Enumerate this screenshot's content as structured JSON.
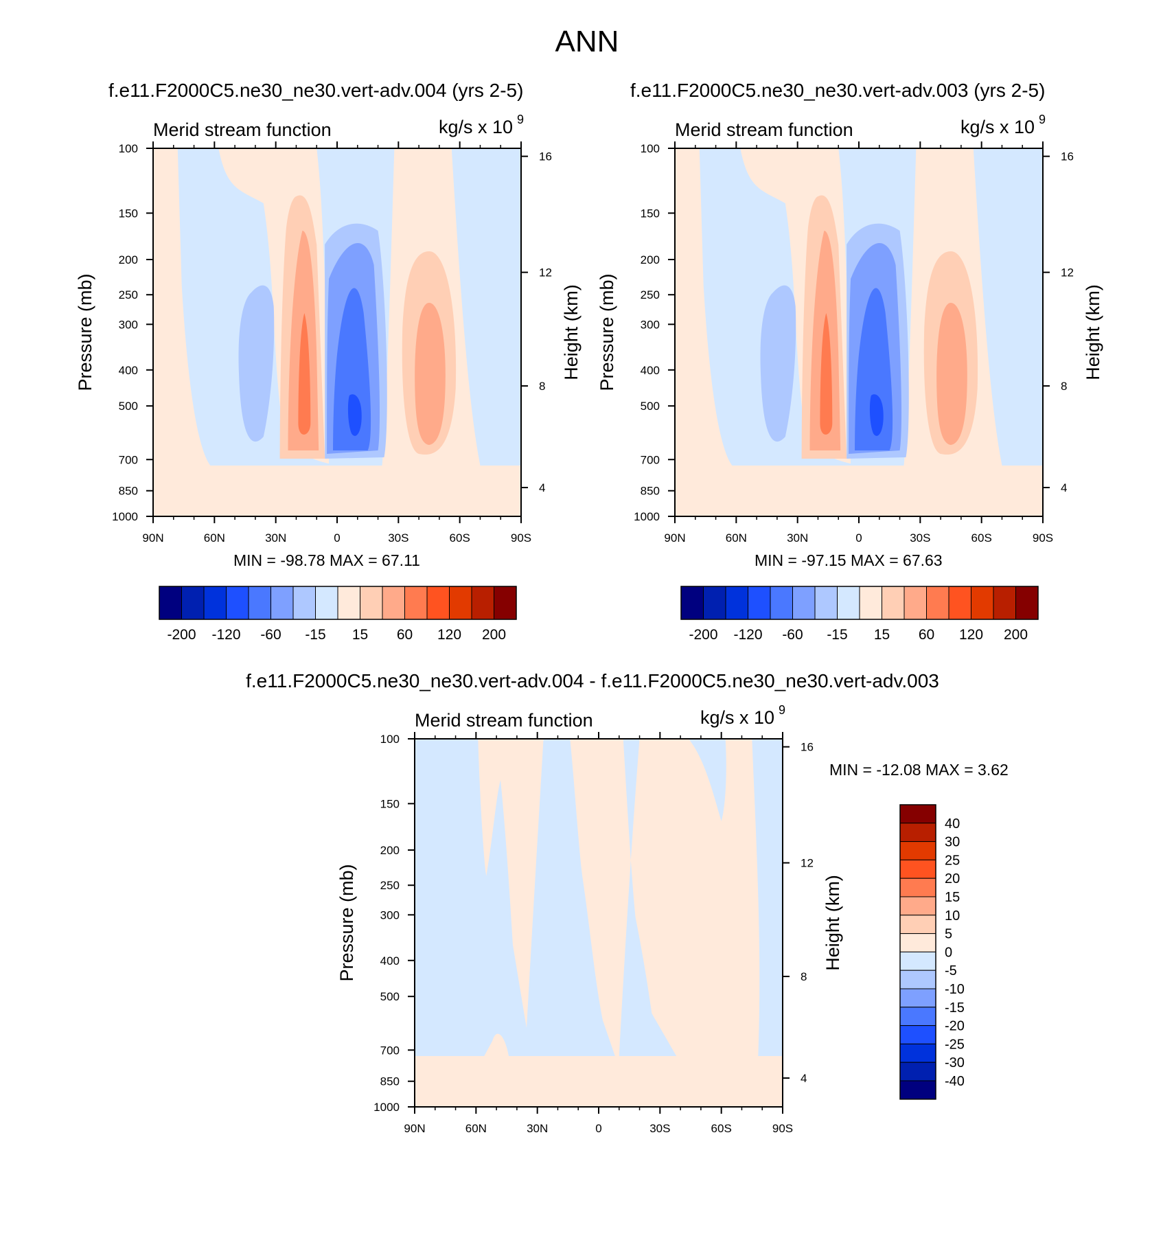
{
  "main_title": "ANN",
  "colors": {
    "panel_scale": [
      "#00007f",
      "#0020b0",
      "#0032dc",
      "#1e50ff",
      "#4a78ff",
      "#7ea0ff",
      "#aec8ff",
      "#d4e8ff",
      "#ffeadb",
      "#ffcfb5",
      "#ffaa8a",
      "#ff7b50",
      "#ff5320",
      "#e23a00",
      "#b81f00",
      "#850000"
    ],
    "diff_scale": [
      "#00007f",
      "#0020b0",
      "#0032dc",
      "#1e50ff",
      "#4a78ff",
      "#7ea0ff",
      "#aec8ff",
      "#d4e8ff",
      "#ffeadb",
      "#ffcfb5",
      "#ffaa8a",
      "#ff7b50",
      "#ff5320",
      "#e23a00",
      "#b81f00",
      "#850000"
    ]
  },
  "chart_data": [
    {
      "type": "heatmap",
      "title": "f.e11.F2000C5.ne30_ne30.vert-adv.004 (yrs 2-5)",
      "left_string": "Merid stream function",
      "units_base": "kg/s x 10",
      "units_exp": "9",
      "ylabel": "Pressure (mb)",
      "y2label": "Height (km)",
      "x_ticks": [
        "90N",
        "60N",
        "30N",
        "0",
        "30S",
        "60S",
        "90S"
      ],
      "y_ticks": [
        "100",
        "150",
        "200",
        "250",
        "300",
        "400",
        "500",
        "700",
        "850",
        "1000"
      ],
      "y2_ticks": [
        "16",
        "12",
        "8",
        "4"
      ],
      "min_max": "MIN = -98.78  MAX =  67.11",
      "colorbar_labels": [
        "-200",
        "-120",
        "-60",
        "-15",
        "15",
        "60",
        "120",
        "200"
      ],
      "extrema": {
        "min": -98.78,
        "max": 67.11
      },
      "cells": [
        {
          "lat": -72,
          "p": 500,
          "value": -20
        },
        {
          "lat": -15,
          "p": 500,
          "value": 50
        },
        {
          "lat": 10,
          "p": 700,
          "value": -90
        },
        {
          "lat": 45,
          "p": 500,
          "value": 40
        }
      ]
    },
    {
      "type": "heatmap",
      "title": "f.e11.F2000C5.ne30_ne30.vert-adv.003 (yrs 2-5)",
      "left_string": "Merid stream function",
      "units_base": "kg/s x 10",
      "units_exp": "9",
      "ylabel": "Pressure (mb)",
      "y2label": "Height (km)",
      "x_ticks": [
        "90N",
        "60N",
        "30N",
        "0",
        "30S",
        "60S",
        "90S"
      ],
      "y_ticks": [
        "100",
        "150",
        "200",
        "250",
        "300",
        "400",
        "500",
        "700",
        "850",
        "1000"
      ],
      "y2_ticks": [
        "16",
        "12",
        "8",
        "4"
      ],
      "min_max": "MIN = -97.15  MAX =  67.63",
      "colorbar_labels": [
        "-200",
        "-120",
        "-60",
        "-15",
        "15",
        "60",
        "120",
        "200"
      ],
      "extrema": {
        "min": -97.15,
        "max": 67.63
      }
    },
    {
      "type": "heatmap",
      "title": "f.e11.F2000C5.ne30_ne30.vert-adv.004 - f.e11.F2000C5.ne30_ne30.vert-adv.003",
      "left_string": "Merid stream function",
      "units_base": "kg/s x 10",
      "units_exp": "9",
      "ylabel": "Pressure (mb)",
      "y2label": "Height (km)",
      "x_ticks": [
        "90N",
        "60N",
        "30N",
        "0",
        "30S",
        "60S",
        "90S"
      ],
      "y_ticks": [
        "100",
        "150",
        "200",
        "250",
        "300",
        "400",
        "500",
        "700",
        "850",
        "1000"
      ],
      "y2_ticks": [
        "16",
        "12",
        "8",
        "4"
      ],
      "min_max": "MIN = -12.08  MAX =   3.62",
      "colorbar_labels": [
        "40",
        "30",
        "25",
        "20",
        "15",
        "10",
        "5",
        "0",
        "-5",
        "-10",
        "-15",
        "-20",
        "-25",
        "-30",
        "-40"
      ],
      "extrema": {
        "min": -12.08,
        "max": 3.62
      }
    }
  ]
}
